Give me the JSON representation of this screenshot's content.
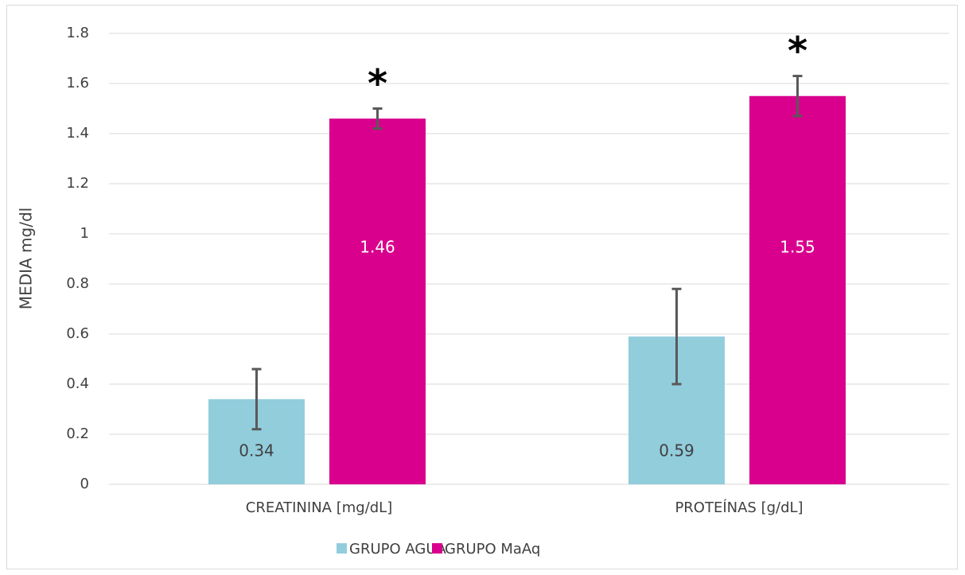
{
  "chart_data": {
    "type": "bar",
    "y_label": "MEDIA  mg/dl",
    "categories": [
      "CREATININA [mg/dL]",
      "PROTEÍNAS [g/dL]"
    ],
    "series": [
      {
        "name": "GRUPO AGUA",
        "color": "#92cddc",
        "values": [
          0.34,
          0.59
        ],
        "errors": [
          0.12,
          0.19
        ]
      },
      {
        "name": "GRUPO MaAq",
        "color": "#d9008d",
        "values": [
          1.46,
          1.55
        ],
        "errors": [
          0.04,
          0.08
        ]
      }
    ],
    "annotations": [
      "*",
      "*"
    ],
    "ylim": [
      0,
      1.8
    ],
    "yticks": [
      0,
      0.2,
      0.4,
      0.6,
      0.8,
      1,
      1.2,
      1.4,
      1.6,
      1.8
    ],
    "grid": true
  }
}
